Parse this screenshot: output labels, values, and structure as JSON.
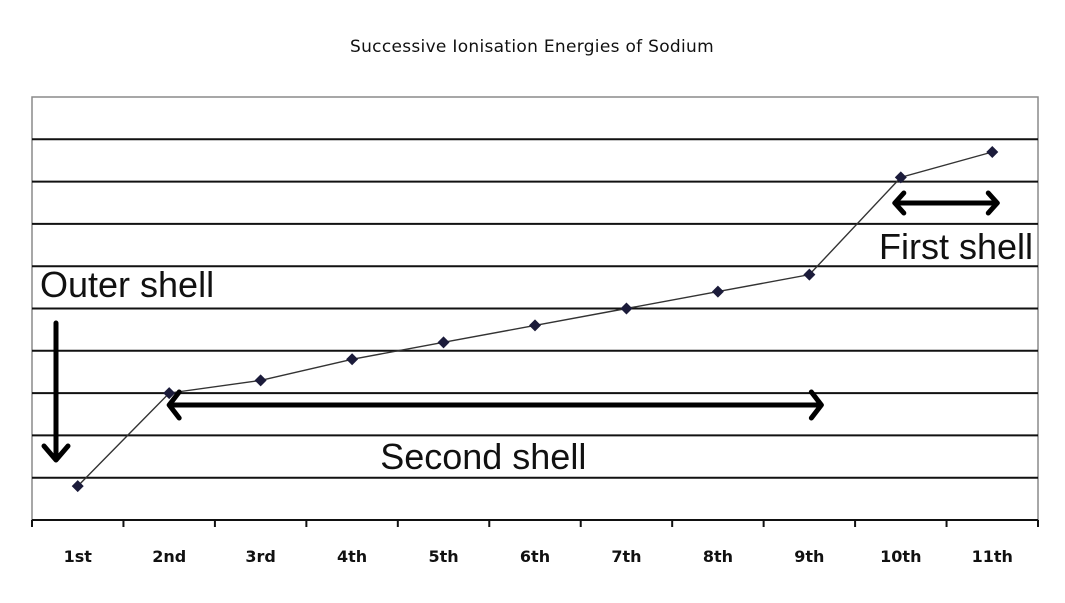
{
  "chart_data": {
    "type": "line",
    "title": "Successive Ionisation Energies of Sodium",
    "xlabel": "",
    "ylabel": "",
    "categories": [
      "1st",
      "2nd",
      "3rd",
      "4th",
      "5th",
      "6th",
      "7th",
      "8th",
      "9th",
      "10th",
      "11th"
    ],
    "series": [
      {
        "values": [
          0.8,
          3.0,
          3.3,
          3.8,
          4.2,
          4.6,
          5.0,
          5.4,
          5.8,
          8.1,
          8.7
        ]
      }
    ],
    "ylim": [
      0,
      10
    ],
    "y_tick_labels_shown": false,
    "grid": true,
    "legend": "none",
    "marker": "diamond",
    "colors": {
      "line": "#333333",
      "marker": "#1b1b3a",
      "grid": "#111111"
    },
    "annotations": [
      {
        "text": "Outer shell",
        "arrow": "down",
        "categories": [
          "1st"
        ]
      },
      {
        "text": "Second shell",
        "arrow": "double-headed",
        "categories": [
          "2nd",
          "9th"
        ]
      },
      {
        "text": "First shell",
        "arrow": "double-headed",
        "categories": [
          "10th",
          "11th"
        ]
      }
    ]
  }
}
